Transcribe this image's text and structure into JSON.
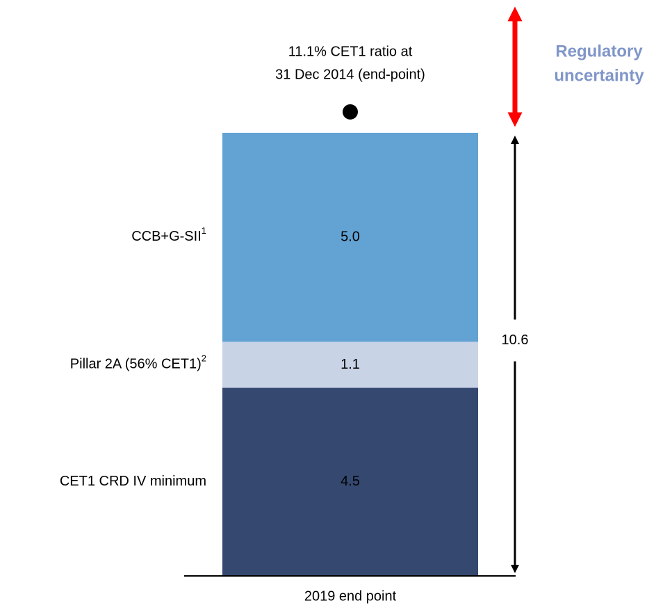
{
  "chart_data": {
    "type": "stacked_bar",
    "categories": [
      "2019 end point"
    ],
    "series": [
      {
        "name": "CET1 CRD IV minimum",
        "color": "#344870",
        "label_color": "#ffffff",
        "values": [
          4.5
        ],
        "value_labels": [
          "4.5"
        ]
      },
      {
        "name": "Pillar 2A (56% CET1)",
        "footnote": "2",
        "color": "#c9d3e6",
        "label_color": "#000000",
        "values": [
          1.1
        ],
        "value_labels": [
          "1.1"
        ]
      },
      {
        "name": "CCB+G-SII",
        "footnote": "1",
        "color": "#62a3d4",
        "label_color": "#ffffff",
        "values": [
          5.0
        ],
        "value_labels": [
          "5.0"
        ]
      }
    ],
    "total": 10.6,
    "marker": {
      "value": 11.1,
      "label_lines": [
        "11.1% CET1 ratio at",
        "31 Dec 2014 (end-point)"
      ]
    },
    "annotation_lines": [
      "Regulatory",
      "uncertainty"
    ]
  }
}
